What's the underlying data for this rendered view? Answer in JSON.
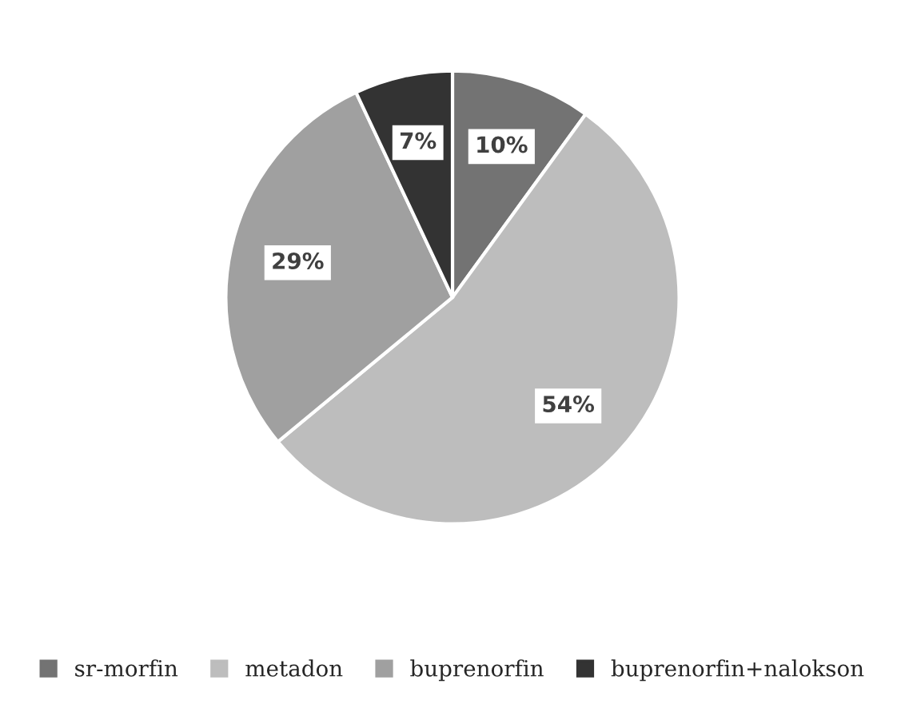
{
  "chart_data": {
    "type": "pie",
    "categories": [
      "sr-morfin",
      "metadon",
      "buprenorfin",
      "buprenorfin+nalokson"
    ],
    "values": [
      10,
      54,
      29,
      7
    ],
    "value_labels": [
      "10%",
      "54%",
      "29%",
      "7%"
    ],
    "colors": [
      "#737373",
      "#bdbdbd",
      "#a0a0a0",
      "#333333"
    ],
    "legend": "bottom"
  }
}
